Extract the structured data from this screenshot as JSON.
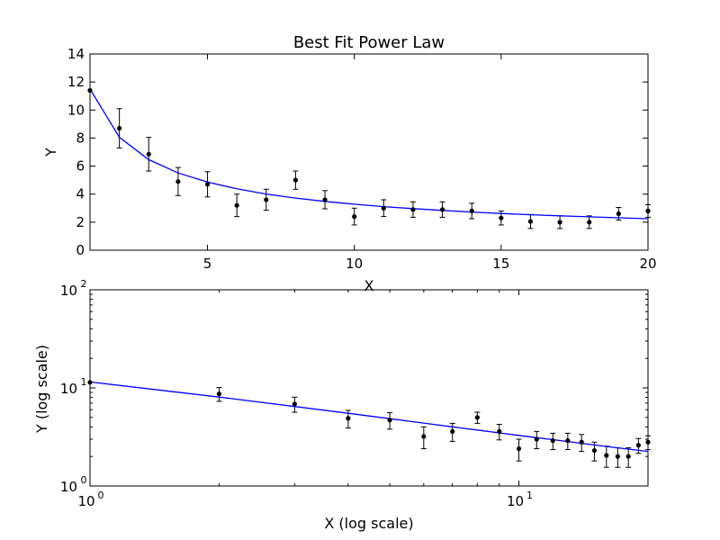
{
  "chart_data": [
    {
      "type": "line",
      "title": "Best Fit Power Law",
      "xlabel": "X",
      "ylabel": "Y",
      "xlim": [
        1,
        20
      ],
      "ylim": [
        0,
        14
      ],
      "xticks": [
        "5",
        "10",
        "15",
        "20"
      ],
      "yticks": [
        "0",
        "2",
        "4",
        "6",
        "8",
        "10",
        "12",
        "14"
      ],
      "grid": false,
      "series": [
        {
          "kind": "errorbar",
          "color": "#000000",
          "x": [
            1,
            2,
            3,
            4,
            5,
            6,
            7,
            8,
            9,
            10,
            11,
            12,
            13,
            14,
            15,
            16,
            17,
            18,
            19,
            20
          ],
          "y": [
            11.4,
            8.7,
            6.85,
            4.9,
            4.7,
            3.2,
            3.6,
            5.0,
            3.6,
            2.4,
            3.0,
            2.9,
            2.9,
            2.8,
            2.3,
            2.05,
            2.0,
            2.0,
            2.6,
            2.8
          ],
          "yerr": [
            0.0,
            1.4,
            1.2,
            1.0,
            0.9,
            0.8,
            0.75,
            0.65,
            0.65,
            0.6,
            0.6,
            0.55,
            0.55,
            0.55,
            0.5,
            0.5,
            0.45,
            0.45,
            0.45,
            0.45
          ]
        },
        {
          "kind": "fit",
          "color": "#0000ff",
          "x": [
            1,
            2,
            3,
            4,
            5,
            6,
            7,
            8,
            9,
            10,
            11,
            12,
            13,
            14,
            15,
            16,
            17,
            18,
            19,
            20
          ],
          "y": [
            11.5,
            8.06,
            6.46,
            5.51,
            4.86,
            4.38,
            4.01,
            3.72,
            3.48,
            3.28,
            3.11,
            2.97,
            2.84,
            2.72,
            2.62,
            2.53,
            2.45,
            2.38,
            2.31,
            2.25
          ]
        }
      ]
    },
    {
      "type": "line",
      "title": "",
      "xlabel": "X (log scale)",
      "ylabel": "Y (log scale)",
      "xscale": "log",
      "yscale": "log",
      "xlim": [
        1,
        20
      ],
      "ylim": [
        1,
        100
      ],
      "xticks": [
        {
          "base": "10",
          "exp": "0"
        },
        {
          "base": "10",
          "exp": "1"
        }
      ],
      "yticks": [
        {
          "base": "10",
          "exp": "0"
        },
        {
          "base": "10",
          "exp": "1"
        },
        {
          "base": "10",
          "exp": "2"
        }
      ],
      "grid": false,
      "note": "same data and fit as upper panel"
    }
  ]
}
